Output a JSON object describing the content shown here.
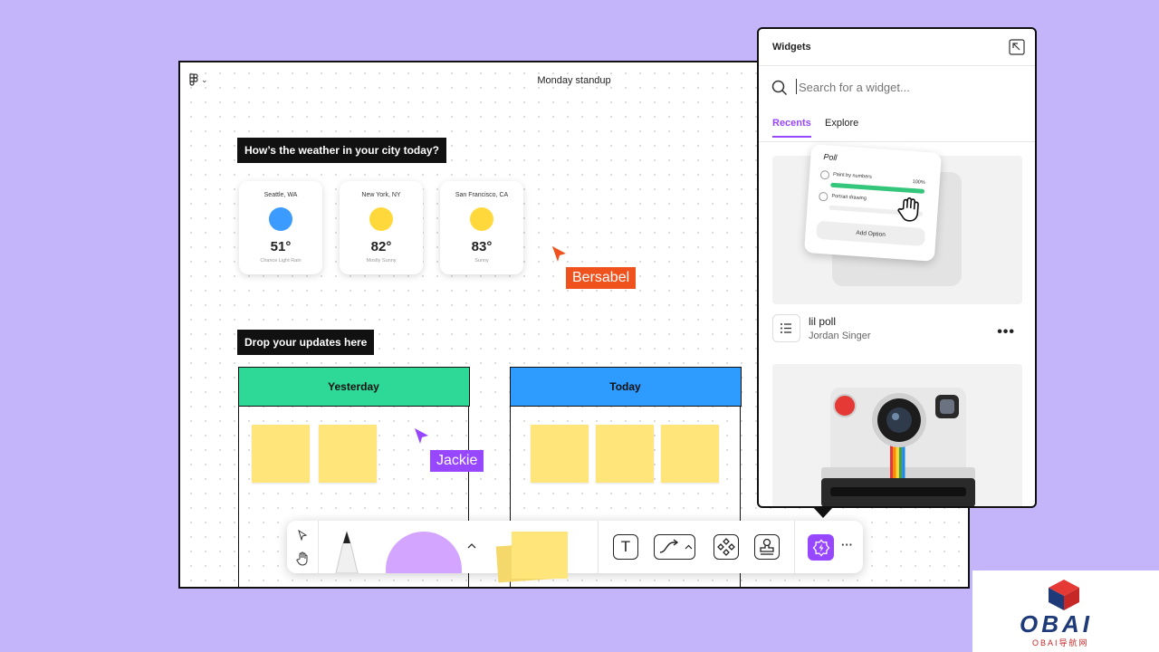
{
  "canvas": {
    "file_title": "Monday standup",
    "menu_caret": "⌄"
  },
  "weather": {
    "heading": "How’s the weather in your city today?",
    "cards": [
      {
        "city": "Seattle, WA",
        "temp": "51°",
        "condition": "Chance Light Rain",
        "color": "#3b9bff"
      },
      {
        "city": "New York, NY",
        "temp": "82°",
        "condition": "Mostly Sunny",
        "color": "#ffd93b"
      },
      {
        "city": "San Francisco, CA",
        "temp": "83°",
        "condition": "Sunny",
        "color": "#ffd93b"
      }
    ]
  },
  "updates": {
    "heading": "Drop your updates here",
    "columns": [
      {
        "label": "Yesterday",
        "color": "#2ed896"
      },
      {
        "label": "Today",
        "color": "#2d9bff"
      }
    ]
  },
  "cursors": [
    {
      "name": "Bersabel",
      "color": "#f0521d"
    },
    {
      "name": "Jackie",
      "color": "#9747ff"
    }
  ],
  "toolbar": {
    "text_tool": "T",
    "more": "···",
    "accent": "#9747ff"
  },
  "widgets_panel": {
    "title": "Widgets",
    "search_placeholder": "Search for a widget...",
    "tabs": [
      "Recents",
      "Explore"
    ],
    "accent": "#9747ff",
    "poll_preview": {
      "title": "Poll",
      "option1": "Paint by numbers",
      "option1_percent": "100%",
      "option2": "Portrait drawing",
      "add_option": "Add Option"
    },
    "widget1": {
      "name": "lil poll",
      "author": "Jordan Singer",
      "more": "•••"
    }
  },
  "watermark": {
    "brand": "OBAI",
    "subtitle": "OBAI导航网"
  }
}
